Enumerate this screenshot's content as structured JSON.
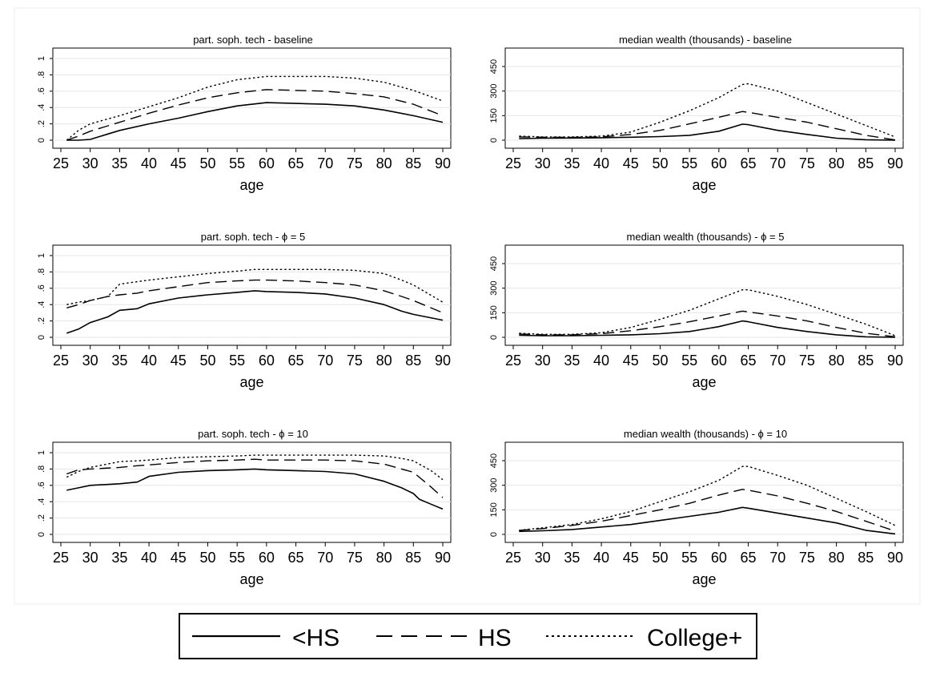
{
  "legend": {
    "placement": "bottom",
    "entries": [
      {
        "label": "<HS",
        "style": "solid"
      },
      {
        "label": "HS",
        "style": "dashed"
      },
      {
        "label": "College+",
        "style": "dotted"
      }
    ]
  },
  "chart_data": [
    {
      "type": "line",
      "title": "part. soph. tech - baseline",
      "xlabel": "age",
      "ylabel": "",
      "xlim": [
        25,
        90
      ],
      "ylim": [
        0,
        1
      ],
      "xticks": [
        "25",
        "30",
        "35",
        "40",
        "45",
        "50",
        "55",
        "60",
        "65",
        "70",
        "75",
        "80",
        "85",
        "90"
      ],
      "yticks": [
        "0",
        ".2",
        ".4",
        ".6",
        ".8",
        "1"
      ],
      "grid": true,
      "x": [
        26,
        28,
        30,
        35,
        40,
        45,
        50,
        55,
        60,
        65,
        70,
        75,
        80,
        85,
        90
      ],
      "series": [
        {
          "name": "<HS",
          "style": "solid",
          "values": [
            0,
            0,
            0.01,
            0.12,
            0.2,
            0.27,
            0.35,
            0.42,
            0.46,
            0.45,
            0.44,
            0.42,
            0.37,
            0.3,
            0.22
          ]
        },
        {
          "name": "HS",
          "style": "dashed",
          "values": [
            0,
            0.05,
            0.11,
            0.22,
            0.33,
            0.43,
            0.52,
            0.58,
            0.62,
            0.61,
            0.6,
            0.57,
            0.53,
            0.44,
            0.3
          ]
        },
        {
          "name": "College+",
          "style": "dotted",
          "values": [
            0,
            0.12,
            0.2,
            0.3,
            0.41,
            0.52,
            0.65,
            0.74,
            0.78,
            0.78,
            0.78,
            0.76,
            0.71,
            0.61,
            0.48
          ]
        }
      ]
    },
    {
      "type": "line",
      "title": "median wealth (thousands) - baseline",
      "xlabel": "age",
      "ylabel": "",
      "xlim": [
        25,
        90
      ],
      "ylim": [
        0,
        500
      ],
      "xticks": [
        "25",
        "30",
        "35",
        "40",
        "45",
        "50",
        "55",
        "60",
        "65",
        "70",
        "75",
        "80",
        "85",
        "90"
      ],
      "yticks": [
        "0",
        "150",
        "300",
        "450"
      ],
      "grid": true,
      "x": [
        26,
        30,
        35,
        40,
        45,
        50,
        55,
        60,
        64,
        65,
        70,
        75,
        80,
        85,
        90
      ],
      "series": [
        {
          "name": "<HS",
          "style": "solid",
          "values": [
            10,
            12,
            13,
            15,
            18,
            22,
            30,
            55,
            98,
            95,
            60,
            35,
            12,
            3,
            0
          ]
        },
        {
          "name": "HS",
          "style": "dashed",
          "values": [
            20,
            18,
            17,
            20,
            35,
            60,
            100,
            140,
            175,
            170,
            140,
            110,
            70,
            30,
            2
          ]
        },
        {
          "name": "College+",
          "style": "dotted",
          "values": [
            25,
            20,
            20,
            25,
            50,
            110,
            180,
            260,
            340,
            345,
            300,
            230,
            160,
            90,
            20
          ]
        }
      ]
    },
    {
      "type": "line",
      "title": "part. soph. tech - ϕ = 5",
      "xlabel": "age",
      "ylabel": "",
      "xlim": [
        25,
        90
      ],
      "ylim": [
        0,
        1
      ],
      "xticks": [
        "25",
        "30",
        "35",
        "40",
        "45",
        "50",
        "55",
        "60",
        "65",
        "70",
        "75",
        "80",
        "85",
        "90"
      ],
      "yticks": [
        "0",
        ".2",
        ".4",
        ".6",
        ".8",
        "1"
      ],
      "grid": true,
      "x": [
        26,
        28,
        30,
        33,
        35,
        38,
        40,
        45,
        50,
        55,
        58,
        60,
        65,
        70,
        75,
        80,
        83,
        85,
        90
      ],
      "series": [
        {
          "name": "<HS",
          "style": "solid",
          "values": [
            0.05,
            0.1,
            0.18,
            0.25,
            0.33,
            0.35,
            0.41,
            0.48,
            0.52,
            0.55,
            0.57,
            0.56,
            0.55,
            0.53,
            0.48,
            0.4,
            0.32,
            0.28,
            0.21
          ]
        },
        {
          "name": "HS",
          "style": "dashed",
          "values": [
            0.36,
            0.4,
            0.45,
            0.5,
            0.52,
            0.54,
            0.57,
            0.62,
            0.67,
            0.69,
            0.7,
            0.7,
            0.69,
            0.67,
            0.64,
            0.57,
            0.5,
            0.45,
            0.3
          ]
        },
        {
          "name": "College+",
          "style": "dotted",
          "values": [
            0.4,
            0.43,
            0.45,
            0.5,
            0.65,
            0.68,
            0.7,
            0.74,
            0.78,
            0.81,
            0.83,
            0.83,
            0.83,
            0.83,
            0.82,
            0.78,
            0.7,
            0.64,
            0.43
          ]
        }
      ]
    },
    {
      "type": "line",
      "title": "median wealth (thousands) - ϕ = 5",
      "xlabel": "age",
      "ylabel": "",
      "xlim": [
        25,
        90
      ],
      "ylim": [
        0,
        500
      ],
      "xticks": [
        "25",
        "30",
        "35",
        "40",
        "45",
        "50",
        "55",
        "60",
        "65",
        "70",
        "75",
        "80",
        "85",
        "90"
      ],
      "yticks": [
        "0",
        "150",
        "300",
        "450"
      ],
      "grid": true,
      "x": [
        26,
        30,
        35,
        40,
        45,
        50,
        55,
        60,
        64,
        65,
        70,
        75,
        80,
        85,
        90
      ],
      "series": [
        {
          "name": "<HS",
          "style": "solid",
          "values": [
            12,
            10,
            10,
            12,
            15,
            22,
            35,
            65,
            100,
            95,
            60,
            35,
            15,
            3,
            0
          ]
        },
        {
          "name": "HS",
          "style": "dashed",
          "values": [
            20,
            15,
            15,
            22,
            40,
            65,
            95,
            130,
            160,
            155,
            130,
            100,
            60,
            25,
            3
          ]
        },
        {
          "name": "College+",
          "style": "dotted",
          "values": [
            25,
            18,
            18,
            28,
            60,
            110,
            165,
            235,
            290,
            290,
            250,
            200,
            140,
            80,
            10
          ]
        }
      ]
    },
    {
      "type": "line",
      "title": "part. soph. tech - ϕ = 10",
      "xlabel": "age",
      "ylabel": "",
      "xlim": [
        25,
        90
      ],
      "ylim": [
        0,
        1
      ],
      "xticks": [
        "25",
        "30",
        "35",
        "40",
        "45",
        "50",
        "55",
        "60",
        "65",
        "70",
        "75",
        "80",
        "85",
        "90"
      ],
      "yticks": [
        "0",
        ".2",
        ".4",
        ".6",
        ".8",
        "1"
      ],
      "grid": true,
      "x": [
        26,
        28,
        30,
        35,
        38,
        40,
        45,
        50,
        55,
        58,
        60,
        65,
        70,
        75,
        80,
        83,
        85,
        86,
        88,
        90
      ],
      "series": [
        {
          "name": "<HS",
          "style": "solid",
          "values": [
            0.54,
            0.57,
            0.6,
            0.62,
            0.64,
            0.71,
            0.76,
            0.78,
            0.79,
            0.8,
            0.79,
            0.78,
            0.77,
            0.74,
            0.65,
            0.57,
            0.5,
            0.43,
            0.37,
            0.31
          ]
        },
        {
          "name": "HS",
          "style": "dashed",
          "values": [
            0.74,
            0.79,
            0.8,
            0.82,
            0.84,
            0.85,
            0.88,
            0.9,
            0.91,
            0.92,
            0.91,
            0.91,
            0.91,
            0.9,
            0.86,
            0.8,
            0.76,
            0.7,
            0.58,
            0.45
          ]
        },
        {
          "name": "College+",
          "style": "dotted",
          "values": [
            0.7,
            0.77,
            0.82,
            0.89,
            0.9,
            0.91,
            0.94,
            0.95,
            0.96,
            0.97,
            0.97,
            0.97,
            0.97,
            0.97,
            0.96,
            0.93,
            0.9,
            0.86,
            0.78,
            0.67
          ]
        }
      ]
    },
    {
      "type": "line",
      "title": "median wealth (thousands) - ϕ = 10",
      "xlabel": "age",
      "ylabel": "",
      "xlim": [
        25,
        90
      ],
      "ylim": [
        0,
        500
      ],
      "xticks": [
        "25",
        "30",
        "35",
        "40",
        "45",
        "50",
        "55",
        "60",
        "65",
        "70",
        "75",
        "80",
        "85",
        "90"
      ],
      "yticks": [
        "0",
        "150",
        "300",
        "450"
      ],
      "grid": true,
      "x": [
        26,
        30,
        35,
        40,
        45,
        50,
        55,
        60,
        64,
        65,
        70,
        75,
        80,
        85,
        90
      ],
      "series": [
        {
          "name": "<HS",
          "style": "solid",
          "values": [
            18,
            22,
            30,
            45,
            60,
            85,
            110,
            135,
            165,
            160,
            130,
            100,
            70,
            25,
            3
          ]
        },
        {
          "name": "HS",
          "style": "dashed",
          "values": [
            25,
            35,
            55,
            80,
            115,
            150,
            190,
            240,
            275,
            270,
            235,
            190,
            140,
            80,
            20
          ]
        },
        {
          "name": "College+",
          "style": "dotted",
          "values": [
            25,
            40,
            60,
            95,
            140,
            200,
            260,
            330,
            415,
            415,
            360,
            300,
            220,
            140,
            55
          ]
        }
      ]
    }
  ]
}
